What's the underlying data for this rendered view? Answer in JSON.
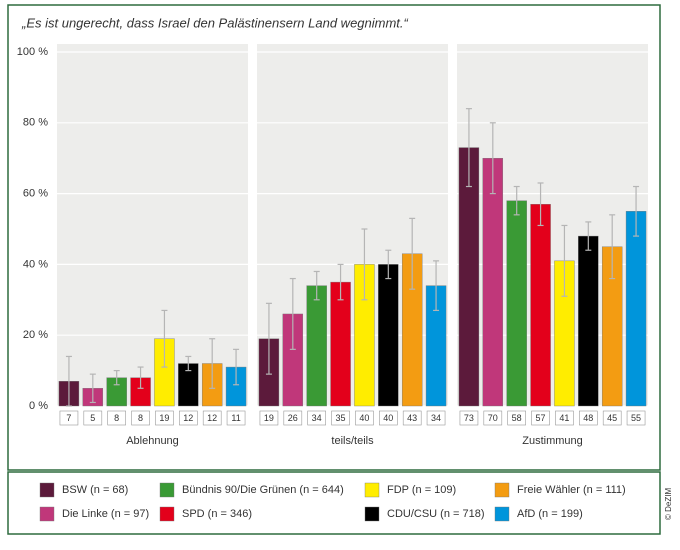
{
  "chart_data": {
    "type": "bar",
    "title": "„Es ist ungerecht, dass Israel den Palästinensern Land wegnimmt.“",
    "credit": "© DeZIM",
    "categories": [
      "Ablehnung",
      "teils/teils",
      "Zustimmung"
    ],
    "series": [
      {
        "name": "BSW (n = 68)",
        "color": "#5c1a3b",
        "values": [
          7,
          19,
          73
        ],
        "errors": [
          7,
          10,
          11
        ]
      },
      {
        "name": "Die Linke (n = 97)",
        "color": "#c0377a",
        "values": [
          5,
          26,
          70
        ],
        "errors": [
          4,
          10,
          10
        ]
      },
      {
        "name": "Bündnis 90/Die Grünen (n = 644)",
        "color": "#3a9a35",
        "values": [
          8,
          34,
          58
        ],
        "errors": [
          2,
          4,
          4
        ]
      },
      {
        "name": "SPD (n = 346)",
        "color": "#e3001b",
        "values": [
          8,
          35,
          57
        ],
        "errors": [
          3,
          5,
          6
        ]
      },
      {
        "name": "FDP (n = 109)",
        "color": "#ffed00",
        "values": [
          19,
          40,
          41
        ],
        "errors": [
          8,
          10,
          10
        ]
      },
      {
        "name": "CDU/CSU (n = 718)",
        "color": "#000000",
        "values": [
          12,
          40,
          48
        ],
        "errors": [
          2,
          4,
          4
        ]
      },
      {
        "name": "Freie Wähler (n = 111)",
        "color": "#f39c12",
        "values": [
          12,
          43,
          45
        ],
        "errors": [
          7,
          10,
          9
        ]
      },
      {
        "name": "AfD (n = 199)",
        "color": "#0095db",
        "values": [
          11,
          34,
          55
        ],
        "errors": [
          5,
          7,
          7
        ]
      }
    ],
    "ylim": [
      0,
      100
    ],
    "yticks": [
      {
        "value": 0,
        "label": "0 %"
      },
      {
        "value": 20,
        "label": "20 %"
      },
      {
        "value": 40,
        "label": "40 %"
      },
      {
        "value": 60,
        "label": "60 %"
      },
      {
        "value": 80,
        "label": "80 %"
      },
      {
        "value": 100,
        "label": "100 %"
      }
    ],
    "grid": true
  }
}
